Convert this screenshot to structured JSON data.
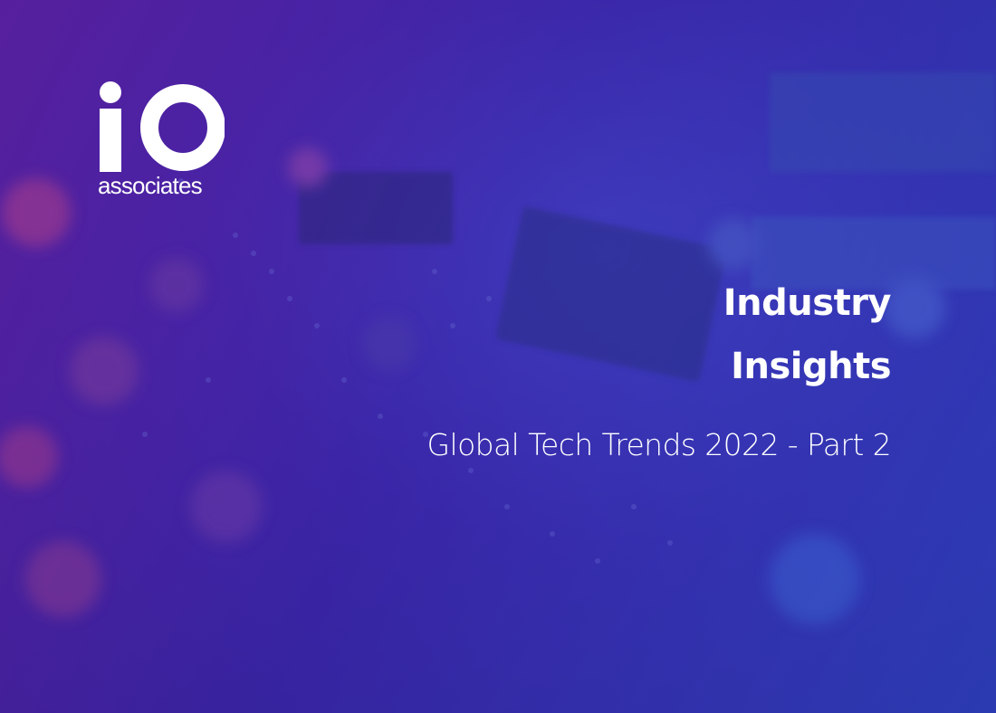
{
  "colors": {
    "background_purple": "#33249a",
    "background_blue": "#3d5fd8",
    "text": "#ffffff"
  },
  "logo": {
    "mark": "iO",
    "subtitle": "associates"
  },
  "title": {
    "line1": "Industry",
    "line2": "Insights"
  },
  "subtitle": "Global Tech Trends 2022 - Part 2",
  "background_image": "circuit-board-photo"
}
